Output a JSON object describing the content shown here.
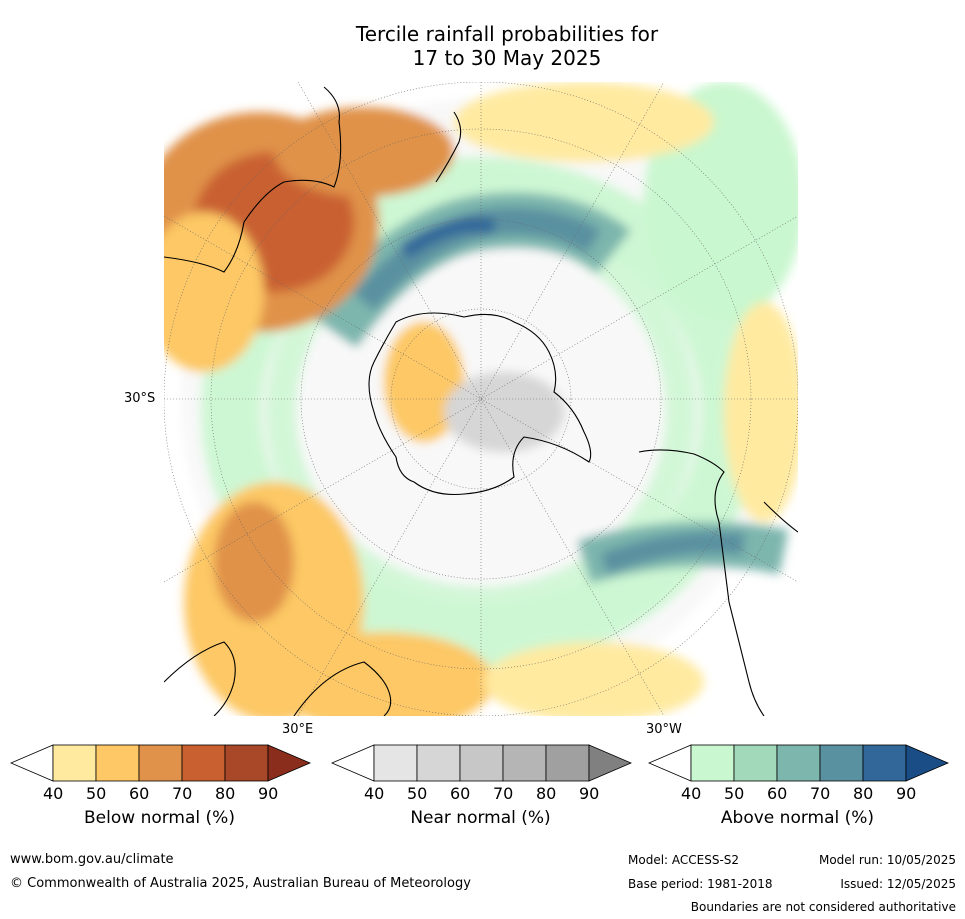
{
  "title_line1": "Tercile rainfall probabilities for",
  "title_line2": "17 to 30 May 2025",
  "map_labels": {
    "lat": "30°S",
    "lon_east": "30°E",
    "lon_west": "30°W"
  },
  "colorbars": [
    {
      "title": "Below normal (%)",
      "ticks": [
        "40",
        "50",
        "60",
        "70",
        "80",
        "90"
      ],
      "colors": [
        "#ffffff",
        "#ffeaa0",
        "#fdc865",
        "#e0924a",
        "#c96030",
        "#a84828",
        "#8a2d1c"
      ]
    },
    {
      "title": "Near normal (%)",
      "ticks": [
        "40",
        "50",
        "60",
        "70",
        "80",
        "90"
      ],
      "colors": [
        "#ffffff",
        "#e5e5e5",
        "#d6d6d6",
        "#c7c7c7",
        "#b5b5b5",
        "#a0a0a0",
        "#808080"
      ]
    },
    {
      "title": "Above normal (%)",
      "ticks": [
        "40",
        "50",
        "60",
        "70",
        "80",
        "90"
      ],
      "colors": [
        "#ffffff",
        "#c9f7cf",
        "#a3d9bb",
        "#7db6ad",
        "#5a91a0",
        "#32679a",
        "#1a4d86"
      ]
    }
  ],
  "footer": {
    "url": "www.bom.gov.au/climate",
    "copyright": "© Commonwealth of Australia 2025, Australian Bureau of Meteorology",
    "model": "Model: ACCESS-S2",
    "base_period": "Base period: 1981-2018",
    "model_run": "Model run: 10/05/2025",
    "issued": "Issued: 12/05/2025",
    "disclaimer": "Boundaries are not considered authoritative"
  }
}
